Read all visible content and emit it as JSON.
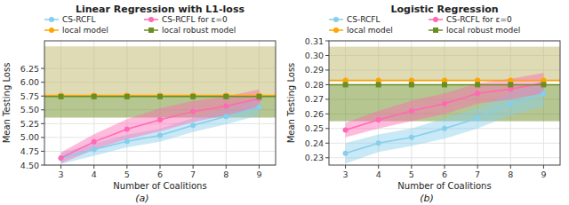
{
  "chart_data": [
    {
      "type": "line",
      "title": "Linear Regression with L1-loss",
      "x_label": "Number of Coalitions",
      "y_label": "Mean Testing Loss",
      "caption": "(a)",
      "x": [
        3,
        4,
        5,
        6,
        7,
        8,
        9
      ],
      "xlim": [
        2.5,
        9.5
      ],
      "xticks": [
        3,
        4,
        5,
        6,
        7,
        8,
        9
      ],
      "ylim": [
        4.5,
        6.75
      ],
      "yticks": [
        {
          "value": 4.5,
          "label": "4.50"
        },
        4.75,
        {
          "value": 5.0,
          "label": "5.00"
        },
        5.25,
        {
          "value": 5.5,
          "label": "5.50"
        },
        5.75,
        {
          "value": 6.0,
          "label": "6.00"
        },
        6.25
      ],
      "grid": true,
      "legend": "upper left",
      "series": [
        {
          "name": "CS-RCFL",
          "color": "#87CEEB",
          "marker": "circle",
          "values": [
            4.62,
            4.78,
            4.93,
            5.04,
            5.22,
            5.38,
            5.55
          ],
          "lower": [
            4.52,
            4.67,
            4.82,
            4.92,
            5.1,
            5.24,
            5.4
          ],
          "upper": [
            4.72,
            4.89,
            5.05,
            5.16,
            5.35,
            5.52,
            5.7
          ]
        },
        {
          "name": "CS-RCFL for ε=0",
          "color": "#FF69B4",
          "marker": "circle",
          "values": [
            4.63,
            4.92,
            5.15,
            5.32,
            5.47,
            5.57,
            5.7
          ],
          "lower": [
            4.53,
            4.78,
            4.97,
            5.11,
            5.28,
            5.4,
            5.53
          ],
          "upper": [
            4.73,
            5.06,
            5.33,
            5.53,
            5.66,
            5.74,
            5.87
          ]
        },
        {
          "name": "local model",
          "color": "#FFA500",
          "band_color": "#BDB76B",
          "marker": "circle",
          "value": 5.76,
          "lower": 5.74,
          "upper": 6.65
        },
        {
          "name": "local robust model",
          "color": "#6B8E23",
          "band_color": "#6B8E23",
          "marker": "square",
          "value": 5.74,
          "lower": 5.36,
          "upper": 5.74
        }
      ]
    },
    {
      "type": "line",
      "title": "Logistic Regression",
      "x_label": "Number of Coalitions",
      "y_label": "Mean Testing Loss",
      "caption": "(b)",
      "x": [
        3,
        4,
        5,
        6,
        7,
        8,
        9
      ],
      "xlim": [
        2.5,
        9.5
      ],
      "xticks": [
        3,
        4,
        5,
        6,
        7,
        8,
        9
      ],
      "ylim": [
        0.225,
        0.31
      ],
      "yticks": [
        0.23,
        0.24,
        0.25,
        0.26,
        0.27,
        0.28,
        0.29,
        {
          "value": 0.3,
          "label": "0.30"
        },
        0.31
      ],
      "grid": true,
      "legend": "upper left",
      "series": [
        {
          "name": "CS-RCFL",
          "color": "#87CEEB",
          "marker": "circle",
          "values": [
            0.233,
            0.24,
            0.244,
            0.25,
            0.257,
            0.267,
            0.274
          ],
          "lower": [
            0.226,
            0.234,
            0.238,
            0.243,
            0.25,
            0.259,
            0.265
          ],
          "upper": [
            0.24,
            0.246,
            0.25,
            0.257,
            0.264,
            0.275,
            0.283
          ]
        },
        {
          "name": "CS-RCFL for ε=0",
          "color": "#FF69B4",
          "marker": "circle",
          "values": [
            0.249,
            0.256,
            0.262,
            0.267,
            0.274,
            0.277,
            0.281
          ],
          "lower": [
            0.244,
            0.25,
            0.255,
            0.26,
            0.267,
            0.27,
            0.274
          ],
          "upper": [
            0.254,
            0.262,
            0.269,
            0.274,
            0.281,
            0.284,
            0.288
          ]
        },
        {
          "name": "local model",
          "color": "#FFA500",
          "band_color": "#BDB76B",
          "marker": "circle",
          "value": 0.283,
          "lower": 0.282,
          "upper": 0.306
        },
        {
          "name": "local robust model",
          "color": "#6B8E23",
          "band_color": "#6B8E23",
          "marker": "square",
          "value": 0.28,
          "lower": 0.255,
          "upper": 0.28
        }
      ]
    }
  ]
}
